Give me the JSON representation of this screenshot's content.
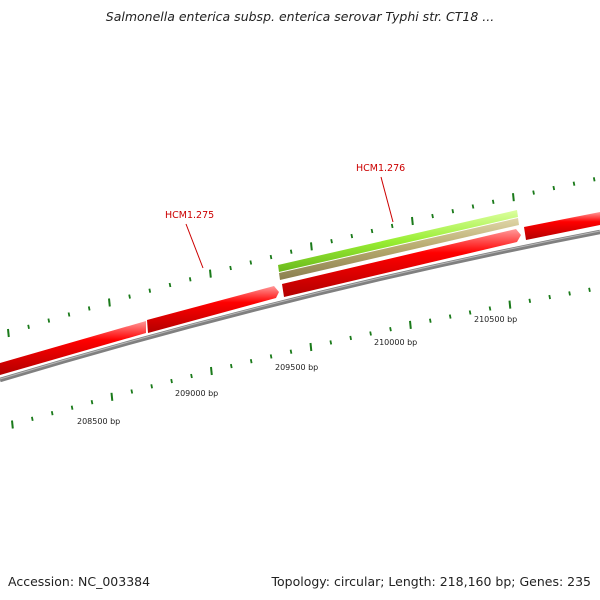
{
  "title": "Salmonella enterica subsp. enterica serovar Typhi str. CT18 ...",
  "footer": {
    "accession": "Accession: NC_003384",
    "summary": "Topology: circular; Length: 218,160 bp; Genes: 235"
  },
  "genes": [
    {
      "name": "HCM1.275",
      "color": "#ff0000",
      "label_color": "#cc0000"
    },
    {
      "name": "HCM1.276",
      "color": "#ff0000",
      "label_color": "#cc0000"
    }
  ],
  "features": [
    {
      "color": "#99ee33"
    },
    {
      "color": "#b5a86c"
    }
  ],
  "scale": {
    "backbone_color": "#808080",
    "tick_color": "#1a7a1a",
    "labels": [
      "208500 bp",
      "209000 bp",
      "209500 bp",
      "210000 bp",
      "210500 bp"
    ]
  }
}
